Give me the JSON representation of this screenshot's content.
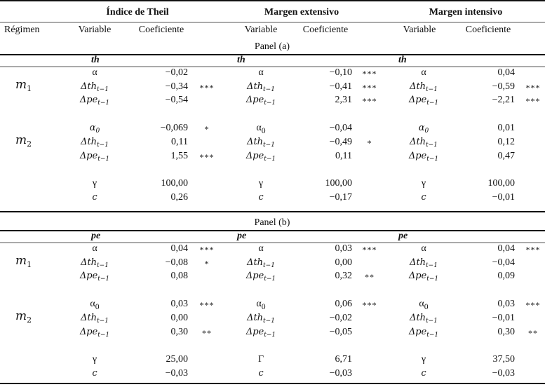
{
  "headers": {
    "groups": [
      "Índice de Theil",
      "Margen extensivo",
      "Margen intensivo"
    ],
    "regimen": "Régimen",
    "variable": "Variable",
    "coeficiente": "Coeficiente"
  },
  "panels": [
    {
      "label": "Panel (a)",
      "dependent": [
        "th",
        "th",
        "th"
      ],
      "blocks": [
        {
          "regime": {
            "base": "m",
            "sub": "1"
          },
          "rows": [
            [
              {
                "var": "α",
                "sub": "",
                "math": false,
                "coef": "−0,02",
                "sig": ""
              },
              {
                "var": "α",
                "sub": "",
                "math": false,
                "coef": "−0,10",
                "sig": "***"
              },
              {
                "var": "α",
                "sub": "",
                "math": false,
                "coef": "0,04",
                "sig": ""
              }
            ],
            [
              {
                "var": "Δth",
                "sub": "t−1",
                "math": true,
                "coef": "−0,34",
                "sig": "***"
              },
              {
                "var": "Δth",
                "sub": "t−1",
                "math": true,
                "coef": "−0,41",
                "sig": "***"
              },
              {
                "var": "Δth",
                "sub": "t−1",
                "math": true,
                "coef": "−0,59",
                "sig": "***"
              }
            ],
            [
              {
                "var": "Δpe",
                "sub": "t−1",
                "math": true,
                "coef": "−0,54",
                "sig": ""
              },
              {
                "var": "Δpe",
                "sub": "t−1",
                "math": true,
                "coef": "2,31",
                "sig": "***"
              },
              {
                "var": "Δpe",
                "sub": "t−1",
                "math": true,
                "coef": "−2,21",
                "sig": "***"
              }
            ]
          ]
        },
        {
          "regime": {
            "base": "m",
            "sub": "2"
          },
          "rows": [
            [
              {
                "var": "α",
                "sub": "0",
                "math": true,
                "coef": "−0,069",
                "sig": "*"
              },
              {
                "var": "α",
                "sub": "0",
                "math": false,
                "coef": "−0,04",
                "sig": ""
              },
              {
                "var": "α",
                "sub": "0",
                "math": true,
                "coef": "0,01",
                "sig": ""
              }
            ],
            [
              {
                "var": "Δth",
                "sub": "t−1",
                "math": true,
                "coef": "0,11",
                "sig": ""
              },
              {
                "var": "Δth",
                "sub": "t−1",
                "math": true,
                "coef": "−0,49",
                "sig": "*"
              },
              {
                "var": "Δth",
                "sub": "t−1",
                "math": true,
                "coef": "0,12",
                "sig": ""
              }
            ],
            [
              {
                "var": "Δpe",
                "sub": "t−1",
                "math": true,
                "coef": "1,55",
                "sig": "***"
              },
              {
                "var": "Δpe",
                "sub": "t−1",
                "math": true,
                "coef": "0,11",
                "sig": ""
              },
              {
                "var": "Δpe",
                "sub": "t−1",
                "math": true,
                "coef": "0,47",
                "sig": ""
              }
            ]
          ]
        },
        {
          "regime": null,
          "rows": [
            [
              {
                "var": "γ",
                "sub": "",
                "math": false,
                "coef": "100,00",
                "sig": ""
              },
              {
                "var": "γ",
                "sub": "",
                "math": false,
                "coef": "100,00",
                "sig": ""
              },
              {
                "var": "γ",
                "sub": "",
                "math": false,
                "coef": "100,00",
                "sig": ""
              }
            ],
            [
              {
                "var": "c",
                "sub": "",
                "math": true,
                "coef": "0,26",
                "sig": ""
              },
              {
                "var": "c",
                "sub": "",
                "math": true,
                "coef": "−0,17",
                "sig": ""
              },
              {
                "var": "c",
                "sub": "",
                "math": true,
                "coef": "−0,01",
                "sig": ""
              }
            ]
          ]
        }
      ]
    },
    {
      "label": "Panel (b)",
      "dependent": [
        "pe",
        "pe",
        "pe"
      ],
      "blocks": [
        {
          "regime": {
            "base": "m",
            "sub": "1"
          },
          "rows": [
            [
              {
                "var": "α",
                "sub": "",
                "math": false,
                "coef": "0,04",
                "sig": "***"
              },
              {
                "var": "α",
                "sub": "",
                "math": false,
                "coef": "0,03",
                "sig": "***"
              },
              {
                "var": "α",
                "sub": "",
                "math": false,
                "coef": "0,04",
                "sig": "***"
              }
            ],
            [
              {
                "var": "Δth",
                "sub": "t−1",
                "math": true,
                "coef": "−0,08",
                "sig": "*"
              },
              {
                "var": "Δth",
                "sub": "t−1",
                "math": true,
                "coef": "0,00",
                "sig": ""
              },
              {
                "var": "Δth",
                "sub": "t−1",
                "math": true,
                "coef": "−0,04",
                "sig": ""
              }
            ],
            [
              {
                "var": "Δpe",
                "sub": "t−1",
                "math": true,
                "coef": "0,08",
                "sig": ""
              },
              {
                "var": "Δpe",
                "sub": "t−1",
                "math": true,
                "coef": "0,32",
                "sig": "**"
              },
              {
                "var": "Δpe",
                "sub": "t−1",
                "math": true,
                "coef": "0,09",
                "sig": ""
              }
            ]
          ]
        },
        {
          "regime": {
            "base": "m",
            "sub": "2"
          },
          "rows": [
            [
              {
                "var": "α",
                "sub": "0",
                "math": false,
                "coef": "0,03",
                "sig": "***"
              },
              {
                "var": "α",
                "sub": "0",
                "math": false,
                "coef": "0,06",
                "sig": "***"
              },
              {
                "var": "α",
                "sub": "0",
                "math": false,
                "coef": "0,03",
                "sig": "***"
              }
            ],
            [
              {
                "var": "Δth",
                "sub": "t−1",
                "math": true,
                "coef": "0,00",
                "sig": ""
              },
              {
                "var": "Δth",
                "sub": "t−1",
                "math": true,
                "coef": "−0,02",
                "sig": ""
              },
              {
                "var": "Δth",
                "sub": "t−1",
                "math": true,
                "coef": "−0,01",
                "sig": ""
              }
            ],
            [
              {
                "var": "Δpe",
                "sub": "t−1",
                "math": true,
                "coef": "0,30",
                "sig": "**"
              },
              {
                "var": "Δpe",
                "sub": "t−1",
                "math": true,
                "coef": "−0,05",
                "sig": ""
              },
              {
                "var": "Δpe",
                "sub": "t−1",
                "math": true,
                "coef": "0,30",
                "sig": "**"
              }
            ]
          ]
        },
        {
          "regime": null,
          "rows": [
            [
              {
                "var": "γ",
                "sub": "",
                "math": false,
                "coef": "25,00",
                "sig": ""
              },
              {
                "var": "Γ",
                "sub": "",
                "math": false,
                "coef": "6,71",
                "sig": ""
              },
              {
                "var": "γ",
                "sub": "",
                "math": false,
                "coef": "37,50",
                "sig": ""
              }
            ],
            [
              {
                "var": "c",
                "sub": "",
                "math": true,
                "coef": "−0,03",
                "sig": ""
              },
              {
                "var": "c",
                "sub": "",
                "math": true,
                "coef": "−0,03",
                "sig": ""
              },
              {
                "var": "c",
                "sub": "",
                "math": true,
                "coef": "−0,03",
                "sig": ""
              }
            ]
          ]
        }
      ]
    }
  ]
}
